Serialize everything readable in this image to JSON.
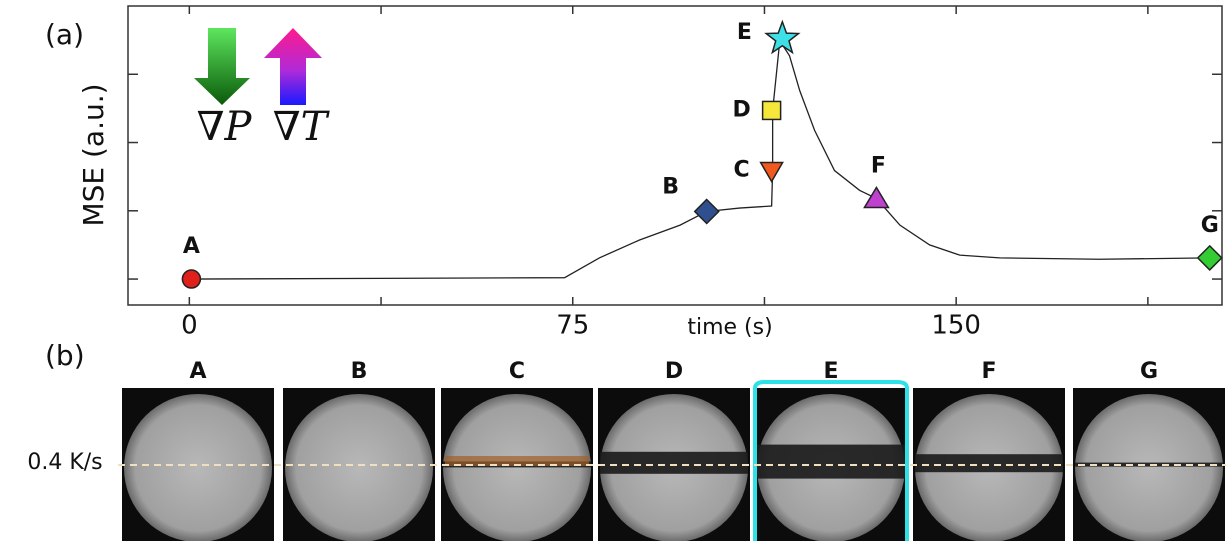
{
  "panel_label": "(a)",
  "chart_data": {
    "type": "line",
    "ylabel": "MSE (a.u.)",
    "xlabel": "time (s)",
    "legend_symbols": [
      "∇P",
      "∇T"
    ],
    "x": [
      0,
      73.4,
      80.2,
      88,
      96,
      101.2,
      107.6,
      113.9,
      114.1,
      114.1,
      115.5,
      117.4,
      119.4,
      122.3,
      126.2,
      131.1,
      134.4,
      139,
      144.8,
      150.7,
      158.5,
      178,
      199.6
    ],
    "values": [
      0,
      0.02,
      0.31,
      0.57,
      0.79,
      0.99,
      1.04,
      1.07,
      1.6,
      2.47,
      3.49,
      3.27,
      2.76,
      2.18,
      1.59,
      1.3,
      1.18,
      0.79,
      0.5,
      0.35,
      0.31,
      0.29,
      0.31
    ],
    "color": "#222222",
    "markers": {
      "labels": [
        "A",
        "B",
        "C",
        "D",
        "E",
        "F",
        "G"
      ],
      "x": [
        0.4,
        101.2,
        113.9,
        113.9,
        116,
        134.4,
        199.6
      ],
      "values": [
        0,
        0.99,
        1.59,
        2.47,
        3.52,
        1.18,
        0.31
      ],
      "colors": [
        "#e0201a",
        "#2f4f8f",
        "#f05a1e",
        "#f5e83a",
        "#3ee0e8",
        "#c040d0",
        "#33cc33"
      ],
      "shapes": [
        "circle",
        "diamond",
        "triangle-down",
        "square",
        "star",
        "triangle-up",
        "diamond"
      ]
    },
    "xlim": [
      -12,
      202
    ],
    "ylim": [
      -0.38,
      4
    ],
    "xticks": [
      0,
      75,
      150
    ],
    "xminor_ticks": [
      37.5,
      112.5,
      187.5
    ],
    "yticks": [
      0,
      1,
      2,
      3
    ],
    "ytick_labels": false
  },
  "panel_b": {
    "label": "(b)",
    "frames": [
      "A",
      "B",
      "C",
      "D",
      "E",
      "F",
      "G"
    ],
    "highlight": "E",
    "rate_label": "0.4 K/s"
  }
}
